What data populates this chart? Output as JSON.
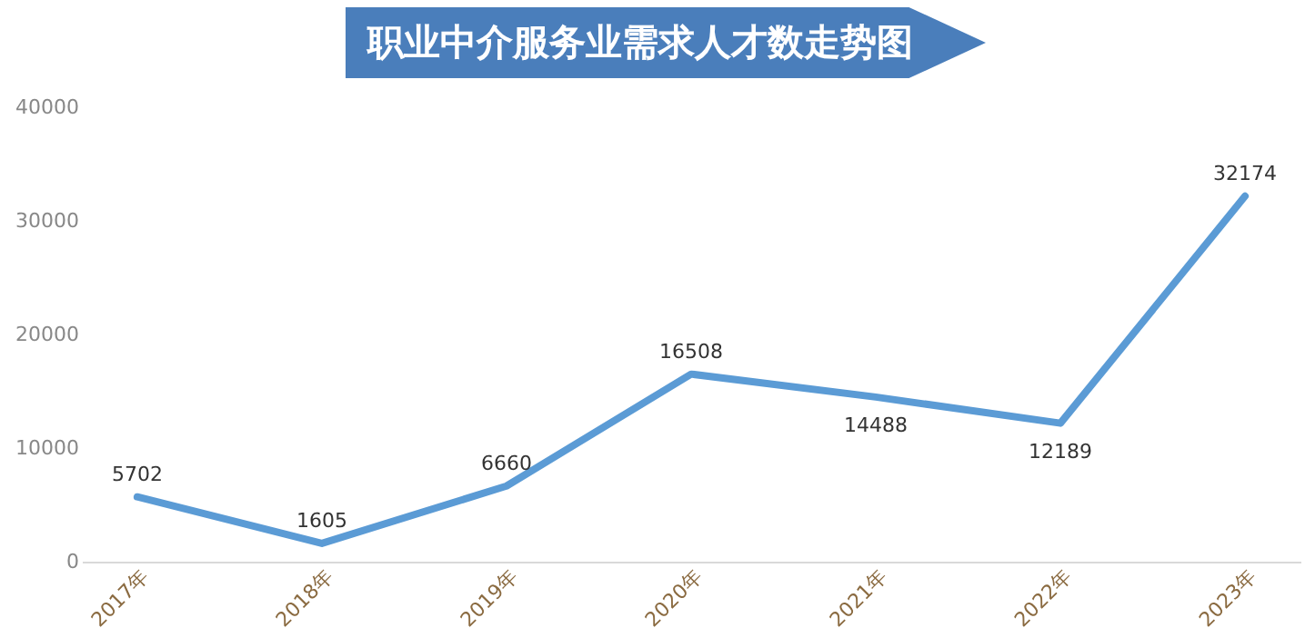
{
  "chart_data": {
    "type": "line",
    "title": "职业中介服务业需求人才数走势图",
    "categories": [
      "2017年",
      "2018年",
      "2019年",
      "2020年",
      "2021年",
      "2022年",
      "2023年"
    ],
    "values": [
      5702,
      1605,
      6660,
      16508,
      14488,
      12189,
      32174
    ],
    "color": "#5b9bd5",
    "ylim": [
      0,
      40000
    ],
    "yticks": [
      0,
      10000,
      20000,
      30000,
      40000
    ],
    "grid": false,
    "data_labels": true,
    "marker": "none",
    "line_style": "solid"
  }
}
